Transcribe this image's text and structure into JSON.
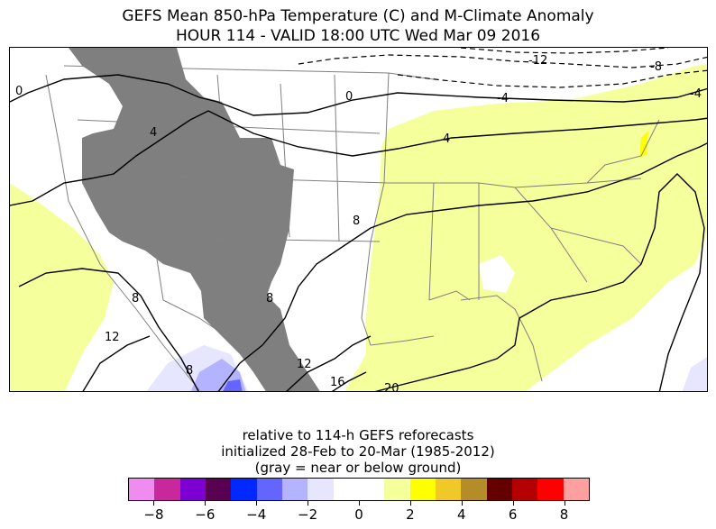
{
  "header": {
    "title_line1": "GEFS Mean 850-hPa Temperature (C) and M-Climate Anomaly",
    "title_line2": "HOUR 114 - VALID 18:00 UTC Wed Mar 09 2016"
  },
  "map": {
    "contour_labels": [
      "0",
      "0",
      "-12",
      "-8",
      "-4",
      "4",
      "-4",
      "4",
      "8",
      "8",
      "8",
      "8",
      "12",
      "12",
      "16",
      "20"
    ],
    "colors": {
      "anomaly_warm_light": "#f5ff9c",
      "anomaly_warm_strong": "#ffff00",
      "anomaly_cold_light": "#e6e6ff",
      "anomaly_cold_mid": "#b3b3ff",
      "anomaly_cold_strong": "#6464ff",
      "below_ground": "#7f7f7f",
      "contour": "#000000",
      "borders": "#808080"
    }
  },
  "caption": {
    "line1": "relative to 114-h GEFS reforecasts",
    "line2": "initialized 28-Feb to 20-Mar (1985-2012)",
    "line3": "(gray = near or below ground)"
  },
  "colorbar": {
    "colors": [
      "#f08cf0",
      "#c8289b",
      "#7d00d2",
      "#5a0050",
      "#0028ff",
      "#6464ff",
      "#b3b3ff",
      "#e6e6ff",
      "#ffffff",
      "#ffffff",
      "#f5ff9c",
      "#ffff00",
      "#f0c828",
      "#b48c28",
      "#640000",
      "#b40000",
      "#ff0000",
      "#ffa0a0"
    ],
    "ticks": [
      "−8",
      "−6",
      "−4",
      "−2",
      "0",
      "2",
      "4",
      "6",
      "8"
    ],
    "tick_values": [
      -8,
      -6,
      -4,
      -2,
      0,
      2,
      4,
      6,
      8
    ],
    "range": [
      -9,
      9
    ]
  }
}
